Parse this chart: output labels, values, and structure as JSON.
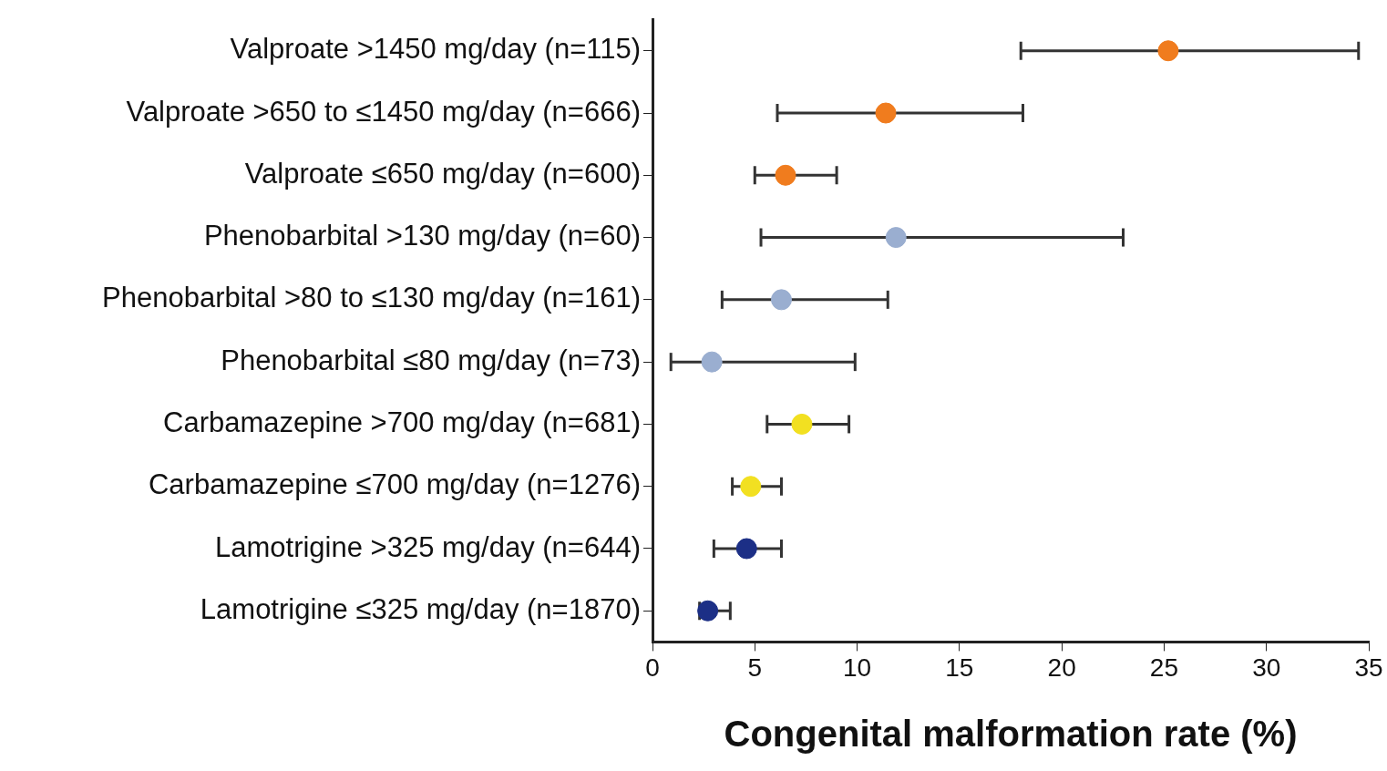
{
  "chart_data": {
    "type": "scatter",
    "orientation": "horizontal",
    "xlabel": "Congenital malformation rate (%)",
    "categories": [
      "Valproate >1450 mg/day (n=115)",
      "Valproate >650 to ≤1450 mg/day (n=666)",
      "Valproate ≤650 mg/day (n=600)",
      "Phenobarbital >130 mg/day (n=60)",
      "Phenobarbital >80 to ≤130 mg/day (n=161)",
      "Phenobarbital ≤80 mg/day (n=73)",
      "Carbamazepine >700 mg/day (n=681)",
      "Carbamazepine ≤700 mg/day (n=1276)",
      "Lamotrigine >325 mg/day (n=644)",
      "Lamotrigine ≤325 mg/day (n=1870)"
    ],
    "values": [
      25.2,
      11.4,
      6.5,
      11.9,
      6.3,
      2.9,
      7.3,
      4.8,
      4.6,
      2.7
    ],
    "errors": [
      [
        18.0,
        34.5
      ],
      [
        6.1,
        18.1
      ],
      [
        5.0,
        9.0
      ],
      [
        5.3,
        23.0
      ],
      [
        3.4,
        11.5
      ],
      [
        0.9,
        9.9
      ],
      [
        5.6,
        9.6
      ],
      [
        3.9,
        6.3
      ],
      [
        3.0,
        6.3
      ],
      [
        2.3,
        3.8
      ]
    ],
    "colors": [
      "#f07c1e",
      "#f07c1e",
      "#f07c1e",
      "#9aaed0",
      "#9aaed0",
      "#9aaed0",
      "#f2e021",
      "#f2e021",
      "#1c2f86",
      "#1c2f86"
    ],
    "xlim": [
      0,
      35
    ],
    "xticks": [
      0,
      5,
      10,
      15,
      20,
      25,
      30,
      35
    ],
    "grid": false,
    "marker": "circle"
  }
}
